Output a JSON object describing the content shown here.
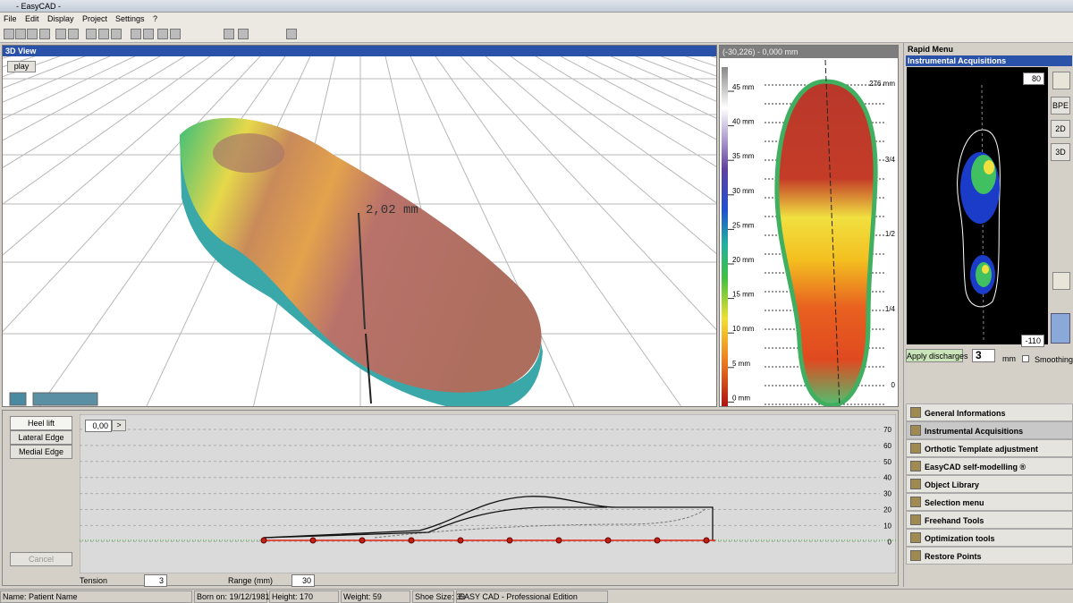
{
  "window": {
    "title": "- EasyCAD -"
  },
  "menu": [
    "File",
    "Edit",
    "Display",
    "Project",
    "Settings",
    "?"
  ],
  "view3d": {
    "title": "3D View",
    "play": "play",
    "measure": "2,02 mm"
  },
  "scale": {
    "header": "(-30,226) - 0,000 mm",
    "labels": [
      "45 mm",
      "40 mm",
      "35 mm",
      "30 mm",
      "25 mm",
      "20 mm",
      "15 mm",
      "10 mm",
      "5 mm",
      "0 mm"
    ],
    "length_labels": [
      "276 mm",
      "3/4",
      "1/2",
      "1/4",
      "0"
    ]
  },
  "rapid": {
    "title": "Rapid Menu",
    "section": "Instrumental Acquisitions",
    "top_value": "80",
    "bottom_value": "-110",
    "tabs": [
      "BPE",
      "2D",
      "3D"
    ],
    "apply": "Apply discharges",
    "amount": "3",
    "unit": "mm",
    "smoothing": "Smoothing",
    "items": [
      "General Informations",
      "Instrumental Acquisitions",
      "Orthotic Template adjustment",
      "EasyCAD self-modelling ®",
      "Object Library",
      "Selection menu",
      "Freehand Tools",
      "Optimization tools",
      "Restore Points"
    ]
  },
  "profile": {
    "buttons": [
      "Heel lift",
      "Lateral Edge",
      "Medial Edge"
    ],
    "cancel": "Cancel",
    "input": "0,00",
    "next": ">",
    "yticks": [
      "70",
      "60",
      "50",
      "40",
      "30",
      "20",
      "10",
      "0"
    ],
    "tension_label": "Tension",
    "tension": "3",
    "range_label": "Range (mm)",
    "range": "30"
  },
  "status": [
    "Name: Patient Name",
    "Born on: 19/12/1981",
    "Height: 170",
    "Weight: 59",
    "Shoe Size: 39",
    "EASY CAD - Professional Edition"
  ]
}
